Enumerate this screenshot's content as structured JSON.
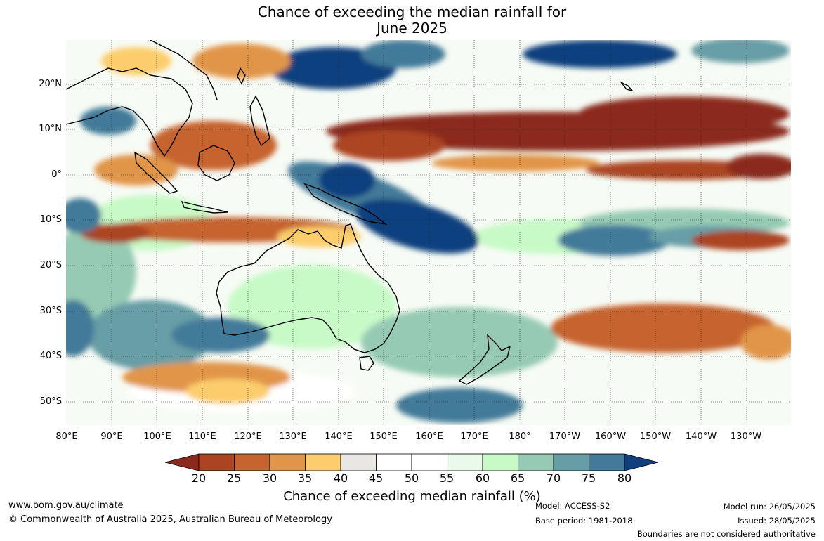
{
  "title_line1": "Chance of exceeding the median rainfall for",
  "title_line2": "June 2025",
  "map": {
    "lat_labels": [
      "20°N",
      "10°N",
      "0°",
      "10°S",
      "20°S",
      "30°S",
      "40°S",
      "50°S"
    ],
    "lon_labels": [
      "80°E",
      "90°E",
      "100°E",
      "110°E",
      "120°E",
      "130°E",
      "140°E",
      "150°E",
      "160°E",
      "170°E",
      "180°",
      "170°W",
      "160°W",
      "150°W",
      "140°W",
      "130°W"
    ]
  },
  "colorbar": {
    "ticks": [
      "20",
      "25",
      "30",
      "35",
      "40",
      "45",
      "50",
      "55",
      "60",
      "65",
      "70",
      "75",
      "80"
    ],
    "colors": [
      "#8b2a1c",
      "#ac4424",
      "#c6632e",
      "#e1954a",
      "#fccd6c",
      "#e9e7e3",
      "#ffffff",
      "#ffffff",
      "#ebf9ea",
      "#c8fac7",
      "#96cab4",
      "#679ea6",
      "#437a99",
      "#103f7e"
    ],
    "label": "Chance of exceeding median rainfall (%)"
  },
  "footer": {
    "website": "www.bom.gov.au/climate",
    "copyright": "© Commonwealth of Australia 2025, Australian Bureau of Meteorology",
    "model": "Model: ACCESS-S2",
    "base_period": "Base period: 1981-2018",
    "model_run": "Model run: 26/05/2025",
    "issued": "Issued: 28/05/2025",
    "disclaimer": "Boundaries are not considered authoritative"
  }
}
